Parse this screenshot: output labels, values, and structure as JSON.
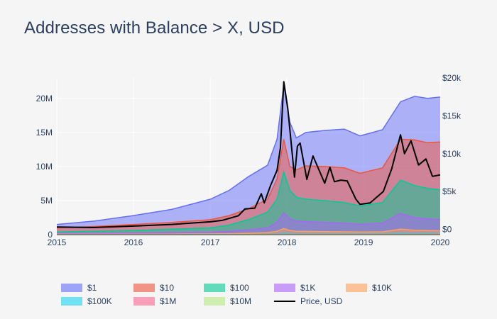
{
  "page": {
    "title": "Addresses with Balance > X, USD"
  },
  "chart_data": {
    "type": "area",
    "title": "Addresses with Balance > X, USD",
    "grid": true,
    "legend_placement": "bottom",
    "x_axis": {
      "type": "date",
      "range": [
        "2015-01-01",
        "2020-01-01"
      ],
      "ticks": [
        "2015",
        "2016",
        "2017",
        "2018",
        "2019",
        "2020"
      ]
    },
    "y_axis": {
      "range": [
        0,
        23000000
      ],
      "ticks": [
        "0",
        "5M",
        "10M",
        "15M",
        "20M"
      ],
      "tick_values": [
        0,
        5000000,
        10000000,
        15000000,
        20000000
      ]
    },
    "y2_axis": {
      "range": [
        -700,
        20000
      ],
      "ticks": [
        "$0",
        "$5k",
        "$10k",
        "$15k",
        "$20k"
      ],
      "tick_values": [
        0,
        5000,
        10000,
        15000,
        20000
      ]
    },
    "x": [
      "2015-01-01",
      "2015-07-01",
      "2016-01-01",
      "2016-07-01",
      "2017-01-01",
      "2017-04-01",
      "2017-07-01",
      "2017-10-01",
      "2017-11-15",
      "2017-12-17",
      "2018-01-15",
      "2018-02-15",
      "2018-04-01",
      "2018-07-01",
      "2018-10-01",
      "2018-12-15",
      "2019-04-01",
      "2019-06-26",
      "2019-09-01",
      "2019-11-01",
      "2020-01-01"
    ],
    "series": [
      {
        "name": "$1",
        "color": "#636efa",
        "values": [
          1500000,
          2000000,
          2800000,
          3700000,
          5200000,
          6500000,
          8500000,
          10200000,
          14000000,
          22000000,
          16500000,
          14200000,
          15000000,
          15300000,
          15500000,
          14500000,
          15400000,
          19500000,
          20300000,
          20000000,
          20200000
        ]
      },
      {
        "name": "$10",
        "color": "#ef553b",
        "values": [
          1000000,
          1200000,
          1500000,
          1800000,
          2200000,
          2800000,
          3800000,
          5200000,
          8200000,
          14000000,
          10000000,
          9500000,
          10100000,
          10000000,
          9800000,
          9000000,
          9800000,
          14000000,
          13900000,
          13500000,
          13600000
        ]
      },
      {
        "name": "$100",
        "color": "#00cc96",
        "values": [
          400000,
          500000,
          600000,
          800000,
          1000000,
          1400000,
          2200000,
          3300000,
          5200000,
          9200000,
          6500000,
          5500000,
          5200000,
          5000000,
          4700000,
          4200000,
          4700000,
          8000000,
          7200000,
          6800000,
          6600000
        ]
      },
      {
        "name": "$1K",
        "color": "#ab63fa",
        "values": [
          180000,
          210000,
          250000,
          300000,
          360000,
          480000,
          700000,
          1000000,
          1800000,
          3200000,
          2300000,
          2000000,
          1900000,
          1800000,
          1700000,
          1500000,
          1700000,
          3100000,
          2500000,
          2300000,
          2200000
        ]
      },
      {
        "name": "$10K",
        "color": "#ffa15a",
        "values": [
          60000,
          65000,
          70000,
          80000,
          100000,
          140000,
          200000,
          300000,
          500000,
          900000,
          600000,
          500000,
          480000,
          450000,
          420000,
          380000,
          420000,
          800000,
          650000,
          600000,
          560000
        ]
      },
      {
        "name": "$100K",
        "color": "#19d3f3",
        "values": [
          15000,
          16000,
          17000,
          18000,
          20000,
          25000,
          35000,
          50000,
          80000,
          150000,
          100000,
          90000,
          85000,
          80000,
          75000,
          70000,
          75000,
          130000,
          110000,
          100000,
          95000
        ]
      },
      {
        "name": "$1M",
        "color": "#ff6692",
        "values": [
          2000,
          2100,
          2200,
          2300,
          2500,
          3000,
          4000,
          6000,
          10000,
          18000,
          12000,
          11000,
          10000,
          9500,
          9000,
          8500,
          9000,
          15000,
          13000,
          12000,
          11500
        ]
      },
      {
        "name": "$10M",
        "color": "#b6e880",
        "values": [
          100,
          100,
          110,
          110,
          120,
          130,
          150,
          200,
          300,
          500,
          400,
          350,
          330,
          310,
          300,
          290,
          300,
          450,
          400,
          380,
          370
        ]
      }
    ],
    "price_series": {
      "name": "Price, USD",
      "color": "#000000",
      "axis": "y2",
      "x": [
        "2015-01-01",
        "2015-07-01",
        "2016-01-01",
        "2016-07-01",
        "2017-01-01",
        "2017-03-01",
        "2017-05-15",
        "2017-06-15",
        "2017-08-01",
        "2017-09-01",
        "2017-09-15",
        "2017-10-15",
        "2017-11-15",
        "2017-12-01",
        "2017-12-17",
        "2018-01-05",
        "2018-02-06",
        "2018-02-20",
        "2018-03-05",
        "2018-04-06",
        "2018-05-05",
        "2018-06-30",
        "2018-07-25",
        "2018-08-15",
        "2018-09-15",
        "2018-10-15",
        "2018-11-25",
        "2018-12-15",
        "2019-02-01",
        "2019-04-05",
        "2019-05-15",
        "2019-06-26",
        "2019-07-15",
        "2019-08-15",
        "2019-09-20",
        "2019-10-25",
        "2019-11-25",
        "2020-01-01"
      ],
      "values": [
        300,
        250,
        430,
        650,
        1000,
        1200,
        1800,
        2700,
        2800,
        4700,
        3500,
        5800,
        7800,
        10800,
        19500,
        16000,
        6900,
        11000,
        11400,
        6600,
        9700,
        6100,
        8200,
        6300,
        6500,
        6400,
        4000,
        3300,
        3500,
        5000,
        8000,
        12500,
        10000,
        11700,
        8500,
        9300,
        7000,
        7200
      ]
    }
  }
}
